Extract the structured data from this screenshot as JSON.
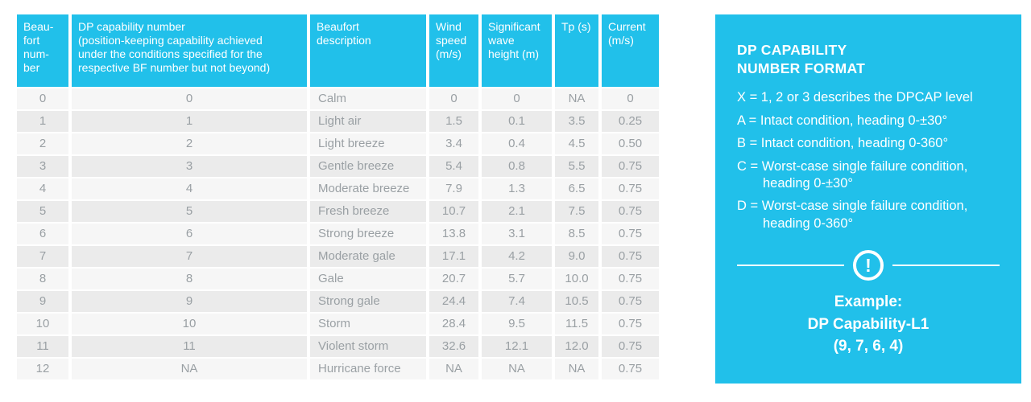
{
  "chart_data": {
    "type": "table",
    "title": "Beaufort / DP capability table",
    "columns": [
      {
        "label": "Beau-\nfort\nnum-\nber"
      },
      {
        "label": "DP capability number\n(position-keeping capability achieved\nunder the conditions specified for the\nrespective BF number but not beyond)"
      },
      {
        "label": "Beaufort\ndescription"
      },
      {
        "label": "Wind\nspeed\n(m/s)"
      },
      {
        "label": "Significant\nwave\nheight (m)"
      },
      {
        "label": "Tp (s)"
      },
      {
        "label": "Current\n(m/s)"
      }
    ],
    "rows": [
      [
        "0",
        "0",
        "Calm",
        "0",
        "0",
        "NA",
        "0"
      ],
      [
        "1",
        "1",
        "Light air",
        "1.5",
        "0.1",
        "3.5",
        "0.25"
      ],
      [
        "2",
        "2",
        "Light breeze",
        "3.4",
        "0.4",
        "4.5",
        "0.50"
      ],
      [
        "3",
        "3",
        "Gentle breeze",
        "5.4",
        "0.8",
        "5.5",
        "0.75"
      ],
      [
        "4",
        "4",
        "Moderate breeze",
        "7.9",
        "1.3",
        "6.5",
        "0.75"
      ],
      [
        "5",
        "5",
        "Fresh breeze",
        "10.7",
        "2.1",
        "7.5",
        "0.75"
      ],
      [
        "6",
        "6",
        "Strong breeze",
        "13.8",
        "3.1",
        "8.5",
        "0.75"
      ],
      [
        "7",
        "7",
        "Moderate gale",
        "17.1",
        "4.2",
        "9.0",
        "0.75"
      ],
      [
        "8",
        "8",
        "Gale",
        "20.7",
        "5.7",
        "10.0",
        "0.75"
      ],
      [
        "9",
        "9",
        "Strong gale",
        "24.4",
        "7.4",
        "10.5",
        "0.75"
      ],
      [
        "10",
        "10",
        "Storm",
        "28.4",
        "9.5",
        "11.5",
        "0.75"
      ],
      [
        "11",
        "11",
        "Violent storm",
        "32.6",
        "12.1",
        "12.0",
        "0.75"
      ],
      [
        "12",
        "NA",
        "Hurricane force",
        "NA",
        "NA",
        "NA",
        "0.75"
      ]
    ]
  },
  "panel": {
    "title": "DP CAPABILITY\nNUMBER FORMAT",
    "items": [
      "X = 1, 2 or 3 describes the DPCAP level",
      "A = Intact condition, heading 0-±30°",
      "B = Intact condition, heading 0-360°",
      "C = Worst-case single failure condition, heading 0-±30°",
      "D = Worst-case single failure condition, heading 0-360°"
    ],
    "divider_icon": "exclamation-icon",
    "exclamation_glyph": "!",
    "example": {
      "label": "Example:",
      "name": "DP Capability-L1",
      "numbers": "(9, 7, 6, 4)"
    }
  },
  "colors": {
    "accent_cyan": "#21c0ea",
    "header_text": "#ffffff",
    "row_light": "#f6f6f6",
    "row_dark": "#ebebeb",
    "body_text": "#9aa0a4"
  }
}
